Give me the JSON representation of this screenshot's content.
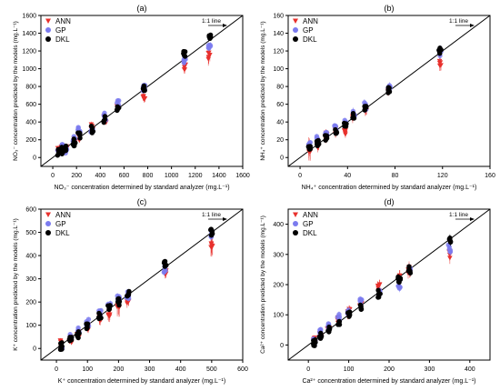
{
  "colors": {
    "ann": "#e8302c",
    "gp": "#7b7bef",
    "dkl": "#000000",
    "line": "#000000"
  },
  "chart_data": [
    {
      "panel": "(a)",
      "type": "scatter",
      "xlabel": "NO₃⁻ concentration determined by standard analyzer (mg.L⁻¹)",
      "ylabel": "NO₃⁻ concentration predicted by the models (mg.L⁻¹)",
      "xlim": [
        -100,
        1600
      ],
      "ylim": [
        -100,
        1600
      ],
      "xticks": [
        0,
        200,
        400,
        600,
        800,
        1000,
        1200,
        1400,
        1600
      ],
      "yticks": [
        0,
        200,
        400,
        600,
        800,
        1000,
        1200,
        1400,
        1600
      ],
      "legend_position": "top-left",
      "ref_line_label": "1:1 line",
      "true_levels": [
        50,
        80,
        110,
        180,
        220,
        330,
        440,
        550,
        770,
        1110,
        1320
      ],
      "series": [
        {
          "name": "ANN",
          "marker": "triangle-down",
          "y_by_level": [
            70,
            90,
            120,
            190,
            230,
            340,
            430,
            540,
            700,
            1030,
            1150
          ],
          "err": [
            50,
            50,
            50,
            50,
            60,
            60,
            60,
            70,
            80,
            90,
            150
          ]
        },
        {
          "name": "GP",
          "marker": "circle",
          "y_by_level": [
            50,
            110,
            90,
            200,
            300,
            320,
            460,
            600,
            780,
            1100,
            1250
          ],
          "err": [
            30,
            30,
            30,
            40,
            40,
            40,
            50,
            50,
            60,
            60,
            70
          ]
        },
        {
          "name": "DKL",
          "marker": "circle",
          "y_by_level": [
            60,
            80,
            120,
            170,
            240,
            320,
            430,
            550,
            780,
            1180,
            1360
          ],
          "err": [
            20,
            20,
            20,
            20,
            30,
            30,
            30,
            30,
            30,
            30,
            30
          ]
        }
      ]
    },
    {
      "panel": "(b)",
      "type": "scatter",
      "xlabel": "NH₄⁺ concentration determined by standard analyzer (mg.L⁻¹)",
      "ylabel": "NH₄⁺ concentration predicted by the models (mg.L⁻¹)",
      "xlim": [
        -10,
        160
      ],
      "ylim": [
        -10,
        160
      ],
      "xticks": [
        0,
        40,
        80,
        120,
        160
      ],
      "yticks": [
        0,
        20,
        40,
        60,
        80,
        100,
        120,
        140,
        160
      ],
      "legend_position": "top-left",
      "ref_line_label": "1:1 line",
      "true_levels": [
        8,
        15,
        22,
        30,
        38,
        45,
        55,
        75,
        118
      ],
      "series": [
        {
          "name": "ANN",
          "marker": "triangle-down",
          "y_by_level": [
            10,
            15,
            24,
            30,
            30,
            45,
            55,
            75,
            105
          ],
          "err": [
            20,
            10,
            8,
            8,
            8,
            10,
            10,
            10,
            12
          ]
        },
        {
          "name": "GP",
          "marker": "circle",
          "y_by_level": [
            15,
            20,
            25,
            35,
            40,
            48,
            58,
            78,
            118
          ],
          "err": [
            5,
            5,
            6,
            6,
            6,
            8,
            8,
            8,
            10
          ]
        },
        {
          "name": "DKL",
          "marker": "circle",
          "y_by_level": [
            12,
            17,
            23,
            31,
            39,
            46,
            56,
            76,
            120
          ],
          "err": [
            4,
            4,
            4,
            4,
            5,
            5,
            5,
            5,
            6
          ]
        }
      ]
    },
    {
      "panel": "(c)",
      "type": "scatter",
      "xlabel": "K⁺ concentration determined by standard analyzer (mg.L⁻¹)",
      "ylabel": "K⁺ concentration predicted by the models (mg.L⁻¹)",
      "xlim": [
        -50,
        600
      ],
      "ylim": [
        -50,
        600
      ],
      "xticks": [
        0,
        100,
        200,
        300,
        400,
        500,
        600
      ],
      "yticks": [
        0,
        100,
        200,
        300,
        400,
        500,
        600
      ],
      "legend_position": "top-left",
      "ref_line_label": "1:1 line",
      "true_levels": [
        15,
        45,
        70,
        100,
        140,
        170,
        200,
        230,
        350,
        500
      ],
      "series": [
        {
          "name": "ANN",
          "marker": "triangle-down",
          "y_by_level": [
            20,
            40,
            60,
            90,
            130,
            150,
            190,
            210,
            330,
            450
          ],
          "err": [
            20,
            20,
            30,
            30,
            40,
            50,
            80,
            40,
            40,
            80
          ]
        },
        {
          "name": "GP",
          "marker": "circle",
          "y_by_level": [
            15,
            50,
            80,
            110,
            150,
            180,
            210,
            230,
            340,
            490
          ],
          "err": [
            15,
            15,
            20,
            20,
            20,
            25,
            25,
            25,
            30,
            30
          ]
        },
        {
          "name": "DKL",
          "marker": "circle",
          "y_by_level": [
            10,
            40,
            60,
            100,
            140,
            170,
            200,
            230,
            360,
            500
          ],
          "err": [
            10,
            10,
            10,
            15,
            15,
            15,
            15,
            20,
            20,
            20
          ]
        }
      ]
    },
    {
      "panel": "(d)",
      "type": "scatter",
      "xlabel": "Ca²⁺ concentration determined by standard analyzer (mg.L⁻¹)",
      "ylabel": "Ca²⁺ concentration predicted by the models (mg.L⁻¹)",
      "xlim": [
        -50,
        450
      ],
      "ylim": [
        -50,
        450
      ],
      "xticks": [
        0,
        100,
        200,
        300,
        400
      ],
      "yticks": [
        0,
        100,
        200,
        300,
        400
      ],
      "legend_position": "top-left",
      "ref_line_label": "1:1 line",
      "true_levels": [
        15,
        30,
        50,
        75,
        100,
        130,
        175,
        225,
        250,
        350
      ],
      "series": [
        {
          "name": "ANN",
          "marker": "triangle-down",
          "y_by_level": [
            20,
            30,
            50,
            80,
            110,
            140,
            190,
            220,
            250,
            300
          ],
          "err": [
            15,
            15,
            20,
            20,
            25,
            25,
            30,
            35,
            35,
            40
          ]
        },
        {
          "name": "GP",
          "marker": "circle",
          "y_by_level": [
            10,
            40,
            60,
            90,
            110,
            140,
            170,
            200,
            250,
            320
          ],
          "err": [
            15,
            15,
            15,
            20,
            20,
            20,
            20,
            25,
            25,
            25
          ]
        },
        {
          "name": "DKL",
          "marker": "circle",
          "y_by_level": [
            10,
            30,
            50,
            80,
            100,
            130,
            170,
            220,
            250,
            350
          ],
          "err": [
            10,
            10,
            10,
            10,
            15,
            15,
            15,
            20,
            20,
            25
          ]
        }
      ]
    }
  ]
}
